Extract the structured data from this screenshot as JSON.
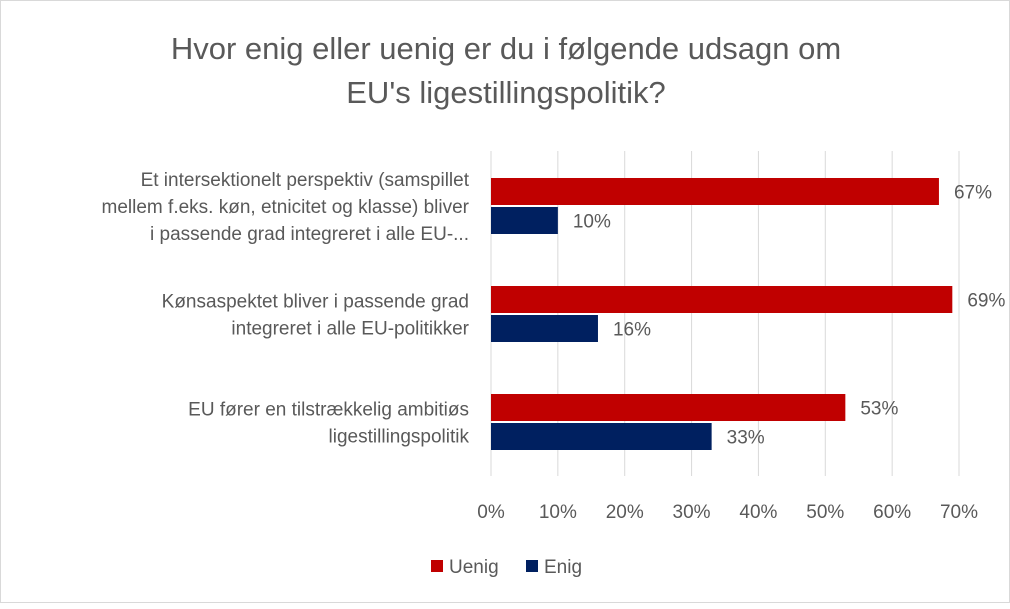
{
  "chart_data": {
    "type": "bar",
    "orientation": "horizontal",
    "title": "Hvor enig eller uenig er du i følgende udsagn om EU's ligestillingspolitik?",
    "title_lines": [
      "Hvor enig eller uenig er du i følgende udsagn om",
      "EU's ligestillingspolitik?"
    ],
    "categories": [
      [
        "Et intersektionelt perspektiv (samspillet",
        "mellem f.eks. køn, etnicitet og klasse) bliver",
        "i passende grad integreret i alle EU-..."
      ],
      [
        "Kønsaspektet bliver i passende grad",
        "integreret i alle EU-politikker"
      ],
      [
        "EU fører en tilstrækkelig ambitiøs",
        "ligestillingspolitik"
      ]
    ],
    "series": [
      {
        "name": "Uenig",
        "color": "#C00000",
        "values": [
          67,
          69,
          53
        ]
      },
      {
        "name": "Enig",
        "color": "#002060",
        "values": [
          10,
          16,
          33
        ]
      }
    ],
    "data_label_suffix": "%",
    "xlim": [
      0,
      70
    ],
    "xticks": [
      "0%",
      "10%",
      "20%",
      "30%",
      "40%",
      "50%",
      "60%",
      "70%"
    ],
    "grid": true,
    "legend": "bottom"
  }
}
